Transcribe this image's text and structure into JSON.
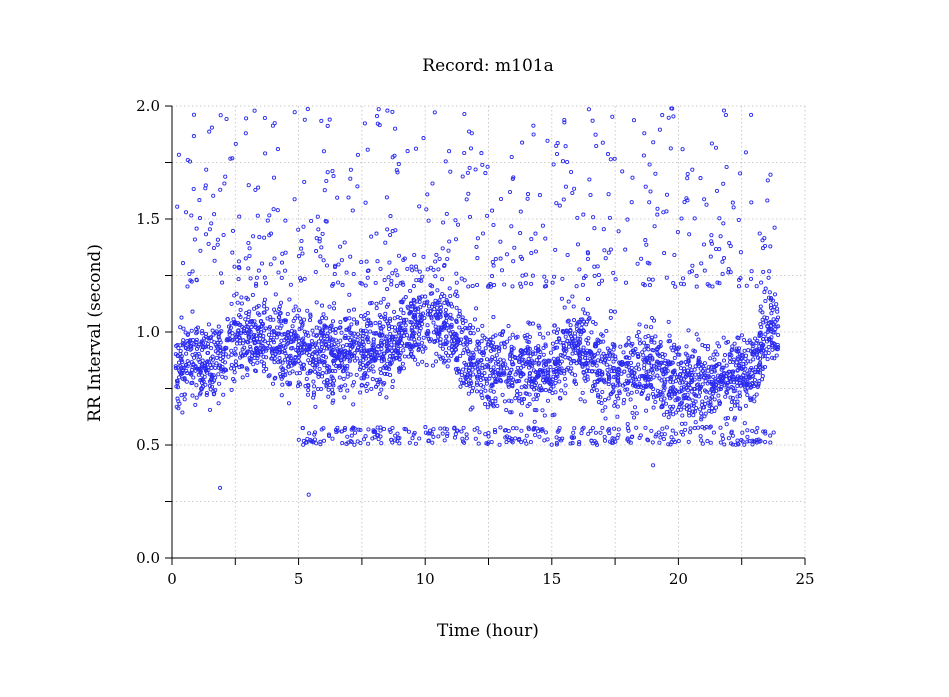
{
  "chart_data": {
    "type": "scatter",
    "title": "Record:  m101a",
    "xlabel": "Time (hour)",
    "ylabel": "RR Interval (second)",
    "xlim": [
      0,
      25
    ],
    "ylim": [
      0,
      2
    ],
    "x_ticks": [
      0,
      5,
      10,
      15,
      20,
      25
    ],
    "x_tick_labels": [
      "0",
      "5",
      "10",
      "15",
      "20",
      "25"
    ],
    "x_minor_ticks": [
      2.5,
      7.5,
      12.5,
      17.5,
      22.5
    ],
    "y_ticks": [
      0,
      0.5,
      1.0,
      1.5,
      2.0
    ],
    "y_tick_labels": [
      "0.0",
      "0.5",
      "1.0",
      "1.5",
      "2.0"
    ],
    "y_minor_ticks": [
      0.25,
      0.75,
      1.25,
      1.75
    ],
    "grid": true,
    "marker": "hollow-circle",
    "marker_color": "#2a2af0",
    "series": [
      {
        "baseline": [
          [
            0.0,
            0.85
          ],
          [
            0.5,
            0.86
          ],
          [
            1.0,
            0.87
          ],
          [
            1.5,
            0.86
          ],
          [
            2.0,
            0.88
          ],
          [
            2.5,
            0.98
          ],
          [
            3.0,
            0.97
          ],
          [
            3.5,
            0.96
          ],
          [
            4.0,
            0.94
          ],
          [
            4.5,
            0.92
          ],
          [
            5.0,
            0.92
          ],
          [
            5.5,
            0.9
          ],
          [
            6.0,
            0.92
          ],
          [
            6.5,
            0.9
          ],
          [
            7.0,
            0.9
          ],
          [
            7.5,
            0.92
          ],
          [
            8.0,
            0.92
          ],
          [
            8.5,
            0.95
          ],
          [
            9.0,
            0.97
          ],
          [
            9.5,
            1.05
          ],
          [
            10.0,
            1.05
          ],
          [
            10.5,
            1.05
          ],
          [
            11.0,
            1.0
          ],
          [
            11.5,
            0.9
          ],
          [
            12.0,
            0.85
          ],
          [
            12.5,
            0.84
          ],
          [
            13.0,
            0.85
          ],
          [
            13.5,
            0.82
          ],
          [
            14.0,
            0.85
          ],
          [
            14.5,
            0.84
          ],
          [
            15.0,
            0.82
          ],
          [
            15.5,
            0.92
          ],
          [
            16.0,
            0.95
          ],
          [
            16.5,
            0.88
          ],
          [
            17.0,
            0.82
          ],
          [
            17.5,
            0.84
          ],
          [
            18.0,
            0.82
          ],
          [
            18.5,
            0.85
          ],
          [
            19.0,
            0.85
          ],
          [
            19.5,
            0.8
          ],
          [
            20.0,
            0.8
          ],
          [
            20.5,
            0.78
          ],
          [
            21.0,
            0.78
          ],
          [
            21.5,
            0.8
          ],
          [
            22.0,
            0.8
          ],
          [
            22.5,
            0.82
          ],
          [
            23.0,
            0.85
          ],
          [
            23.5,
            1.0
          ],
          [
            23.9,
            1.02
          ]
        ],
        "x_range": [
          0.15,
          23.95
        ],
        "spread": 0.09,
        "outliers_low": {
          "band": [
            0.5,
            0.58
          ],
          "x_range": [
            5.0,
            23.8
          ]
        },
        "outliers_high": {
          "band": [
            1.2,
            2.0
          ],
          "x_range": [
            0.2,
            23.9
          ]
        },
        "isolated": [
          [
            1.9,
            0.31
          ],
          [
            5.4,
            0.28
          ],
          [
            19.0,
            0.41
          ]
        ]
      }
    ]
  }
}
